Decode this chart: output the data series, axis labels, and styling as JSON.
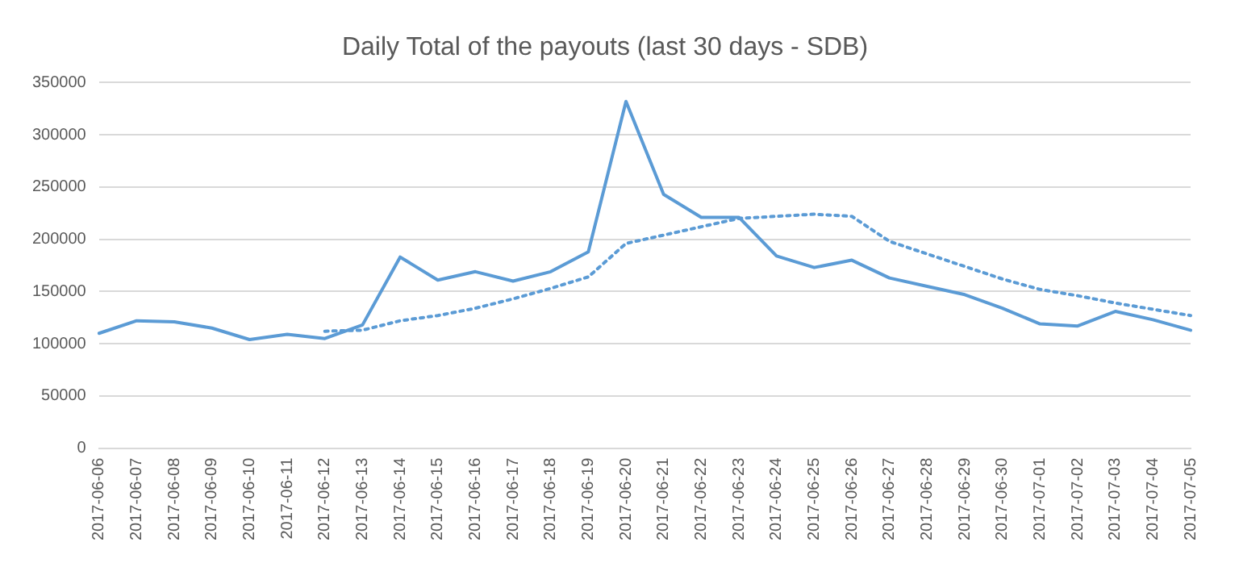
{
  "chart_data": {
    "type": "line",
    "title": "Daily Total of the payouts (last 30 days - SDB)",
    "categories": [
      "2017-06-06",
      "2017-06-07",
      "2017-06-08",
      "2017-06-09",
      "2017-06-10",
      "2017-06-11",
      "2017-06-12",
      "2017-06-13",
      "2017-06-14",
      "2017-06-15",
      "2017-06-16",
      "2017-06-17",
      "2017-06-18",
      "2017-06-19",
      "2017-06-20",
      "2017-06-21",
      "2017-06-22",
      "2017-06-23",
      "2017-06-24",
      "2017-06-25",
      "2017-06-26",
      "2017-06-27",
      "2017-06-28",
      "2017-06-29",
      "2017-06-30",
      "2017-07-01",
      "2017-07-02",
      "2017-07-03",
      "2017-07-04",
      "2017-07-05"
    ],
    "series": [
      {
        "color": "#5b9bd5",
        "line_style": "solid",
        "values": [
          110000,
          122000,
          121000,
          115000,
          104000,
          109000,
          105000,
          118000,
          183000,
          161000,
          169000,
          160000,
          169000,
          188000,
          332000,
          243000,
          221000,
          221000,
          184000,
          173000,
          180000,
          163000,
          155000,
          147000,
          134000,
          119000,
          117000,
          131000,
          123000,
          113000
        ]
      },
      {
        "color": "#5b9bd5",
        "line_style": "dotted",
        "values": [
          null,
          null,
          null,
          null,
          null,
          null,
          112000,
          113000,
          122000,
          127000,
          134000,
          143000,
          153000,
          164000,
          196000,
          204000,
          212000,
          220000,
          222000,
          224000,
          222000,
          198000,
          186000,
          174000,
          162000,
          152000,
          146000,
          139000,
          133000,
          127000
        ]
      }
    ],
    "ylim": [
      0,
      350000
    ],
    "yticks": [
      0,
      50000,
      100000,
      150000,
      200000,
      250000,
      300000,
      350000
    ],
    "grid": "y",
    "legend": false,
    "marker": "none"
  }
}
